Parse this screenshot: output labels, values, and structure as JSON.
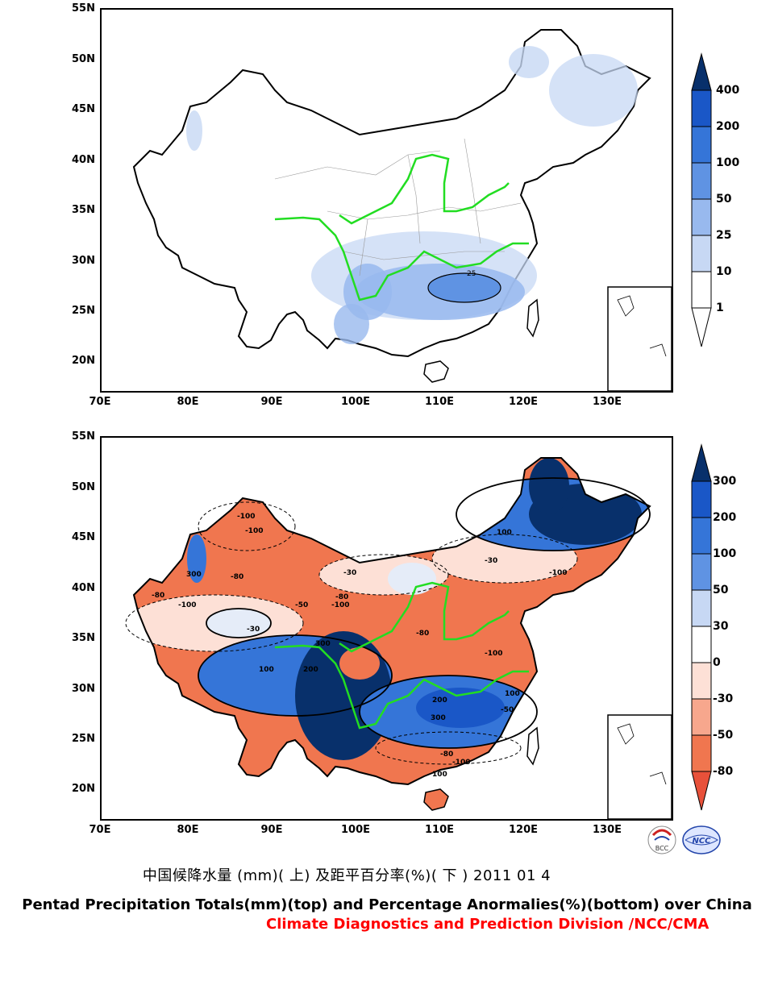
{
  "top_map": {
    "lat_labels": [
      "55N",
      "50N",
      "45N",
      "40N",
      "35N",
      "30N",
      "25N",
      "20N"
    ],
    "lon_labels": [
      "70E",
      "80E",
      "90E",
      "100E",
      "110E",
      "120E",
      "130E"
    ],
    "colorbar_labels": [
      "400",
      "200",
      "100",
      "50",
      "25",
      "10",
      "1"
    ],
    "colorbar_colors": [
      "#08306b",
      "#1a57c7",
      "#3575d8",
      "#5f93e3",
      "#98b9ee",
      "#c7d8f4",
      "#ffffff"
    ],
    "contour_label": "25"
  },
  "bottom_map": {
    "lat_labels": [
      "55N",
      "50N",
      "45N",
      "40N",
      "35N",
      "30N",
      "25N",
      "20N"
    ],
    "lon_labels": [
      "70E",
      "80E",
      "90E",
      "100E",
      "110E",
      "120E",
      "130E"
    ],
    "colorbar_labels": [
      "300",
      "200",
      "100",
      "50",
      "30",
      "0",
      "-30",
      "-50",
      "-80"
    ],
    "colorbar_colors": [
      "#08306b",
      "#1a57c7",
      "#3575d8",
      "#5f93e3",
      "#c7d8f4",
      "#ffffff",
      "#fde0d6",
      "#f7a78d",
      "#f0764f",
      "#e8513a"
    ],
    "contour_labels": [
      "-100",
      "-100",
      "300",
      "-80",
      "-100",
      "-80",
      "-30",
      "-50",
      "-80",
      "-100",
      "100",
      "-30",
      "-100",
      "300",
      "200",
      "100",
      "-80",
      "-100",
      "300",
      "200",
      "-50",
      "100",
      "-30",
      "-80",
      "-100",
      "100"
    ]
  },
  "logos": {
    "left": "BCC",
    "right": "NCC"
  },
  "title_cn": "中国候降水量 (mm)( 上) 及距平百分率(%)( 下 ) 2011 01 4",
  "title_en": "Pentad Precipitation Totals(mm)(top) and Percentage Anormalies(%)(bottom) over China",
  "credit": "Climate Diagnostics and Prediction Division /NCC/CMA",
  "colors": {
    "river": "#22dd22",
    "credit": "#ff0000"
  }
}
